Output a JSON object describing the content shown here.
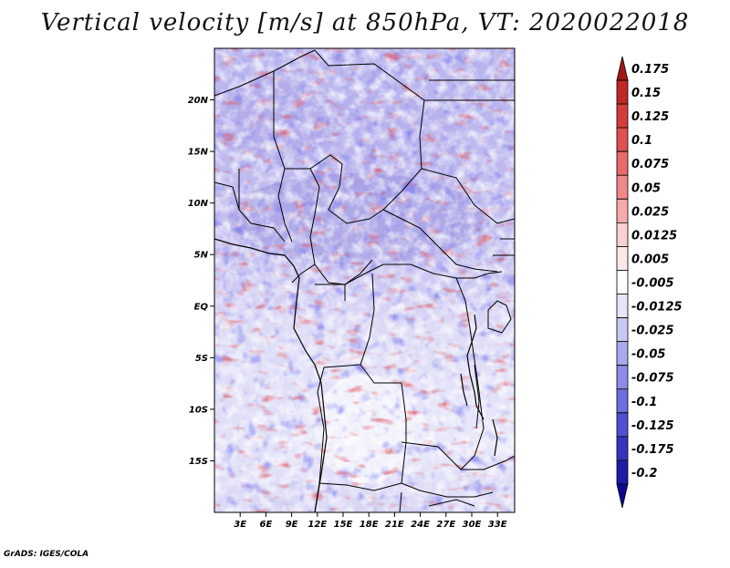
{
  "title": "Vertical velocity [m/s] at 850hPa, VT: 2020022018",
  "credit": "GrADS: IGES/COLA",
  "map": {
    "region": "Central Africa",
    "lon_range": [
      0,
      35
    ],
    "lat_range": [
      -20,
      25
    ],
    "lat_ticks": [
      "20N",
      "15N",
      "10N",
      "5N",
      "EQ",
      "5S",
      "10S",
      "15S"
    ],
    "lat_tick_values": [
      20,
      15,
      10,
      5,
      0,
      -5,
      -10,
      -15
    ],
    "lon_ticks": [
      "3E",
      "6E",
      "9E",
      "12E",
      "15E",
      "18E",
      "21E",
      "24E",
      "27E",
      "30E",
      "33E"
    ],
    "lon_tick_values": [
      3,
      6,
      9,
      12,
      15,
      18,
      21,
      24,
      27,
      30,
      33
    ]
  },
  "colorbar": {
    "levels": [
      "0.175",
      "0.15",
      "0.125",
      "0.1",
      "0.075",
      "0.05",
      "0.025",
      "0.0125",
      "0.005",
      "-0.005",
      "-0.0125",
      "-0.025",
      "-0.05",
      "-0.075",
      "-0.1",
      "-0.125",
      "-0.175",
      "-0.2"
    ],
    "colors": [
      "#a01818",
      "#c02828",
      "#d43c3c",
      "#e05050",
      "#e86a6a",
      "#f08888",
      "#f6aaaa",
      "#fad0d0",
      "#fde8e8",
      "#ffffff",
      "#e6e6fa",
      "#c8c8f4",
      "#a8a8ee",
      "#8c8ce6",
      "#6e6ede",
      "#5050d2",
      "#3434c0",
      "#1c1ca8",
      "#100890"
    ]
  }
}
